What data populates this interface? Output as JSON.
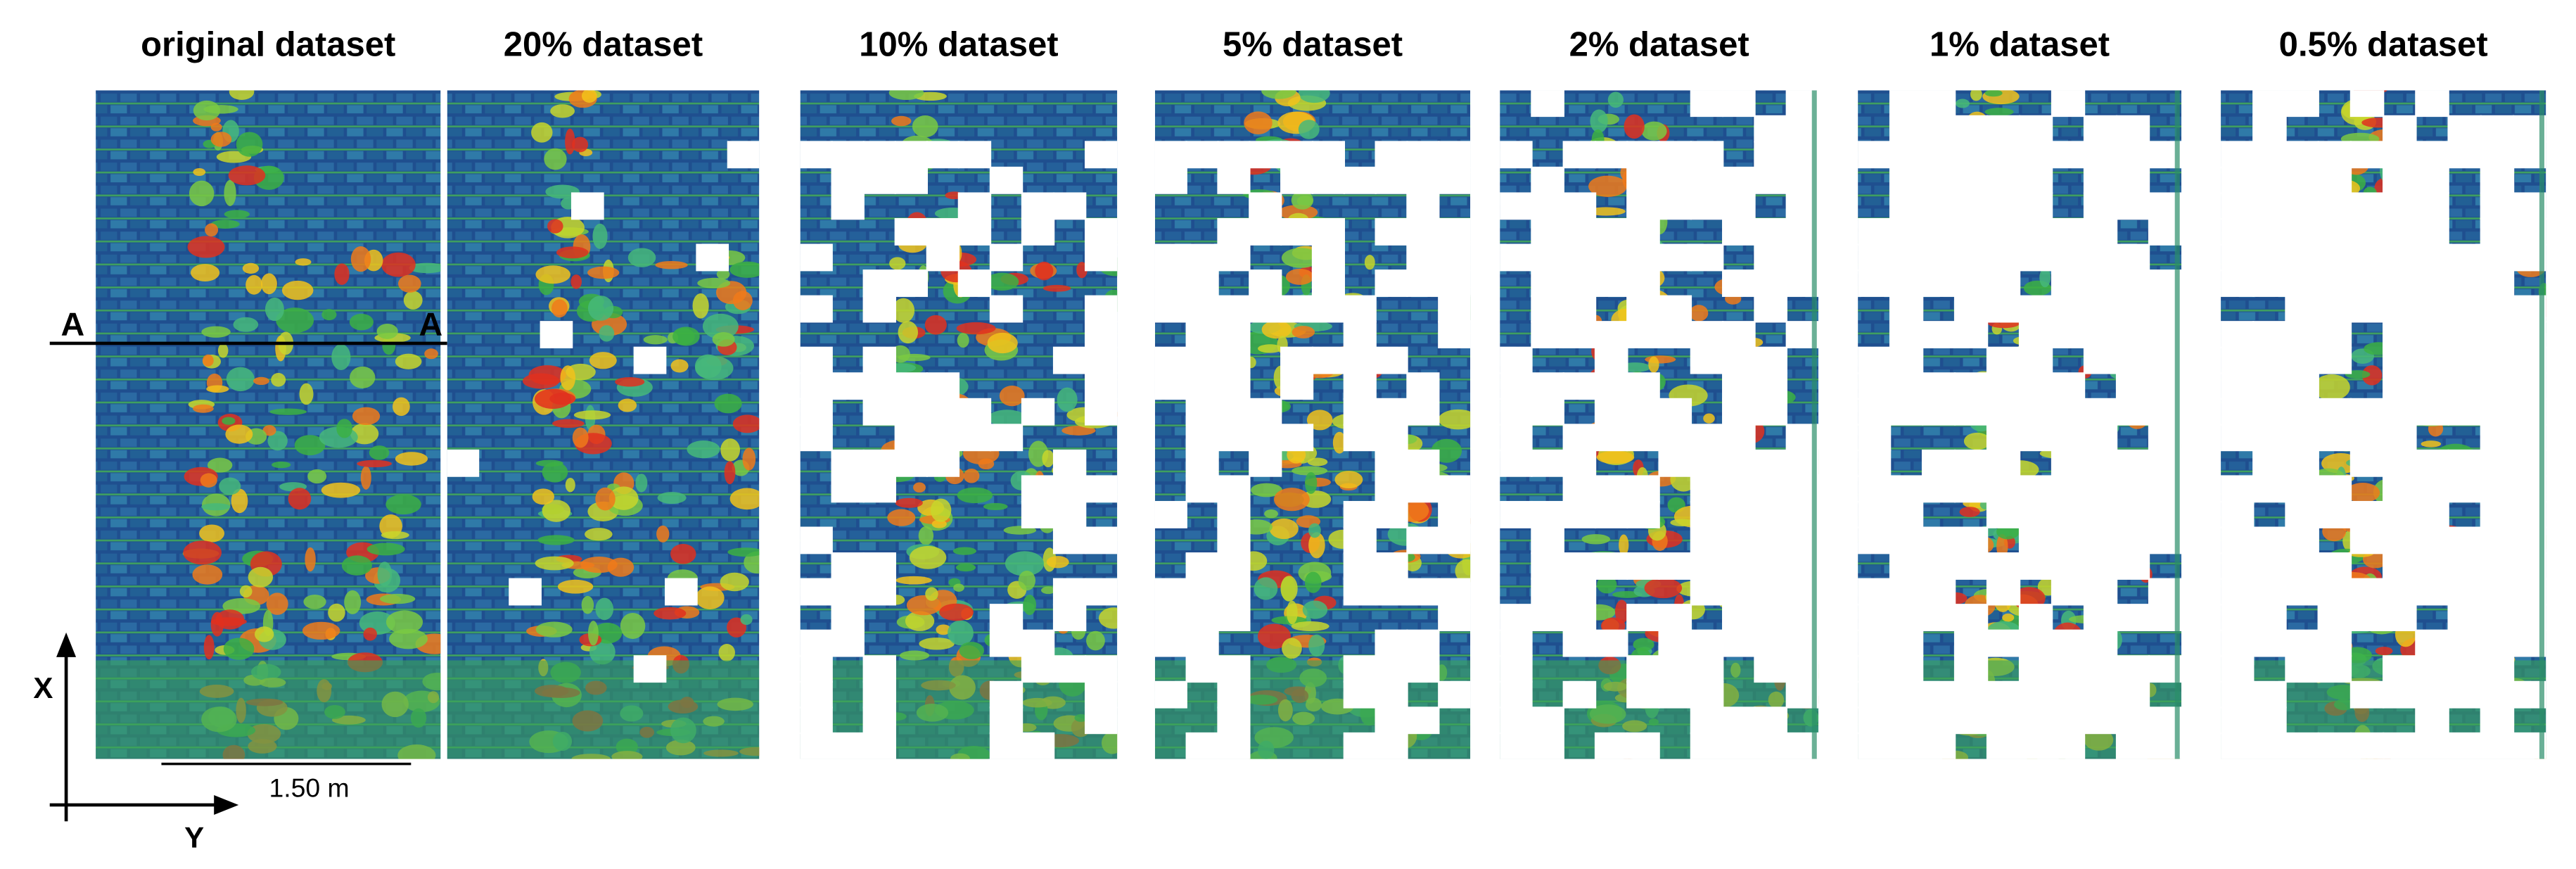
{
  "panels": [
    {
      "title": "original dataset"
    },
    {
      "title": "20% dataset"
    },
    {
      "title": "10%  dataset"
    },
    {
      "title": "5% dataset"
    },
    {
      "title": "2% dataset"
    },
    {
      "title": "1% dataset"
    },
    {
      "title": "0.5% dataset"
    }
  ],
  "section_marks": [
    "A",
    "A"
  ],
  "axes": {
    "x": "X",
    "y": "Y"
  },
  "scale_bar": "1.50 m"
}
